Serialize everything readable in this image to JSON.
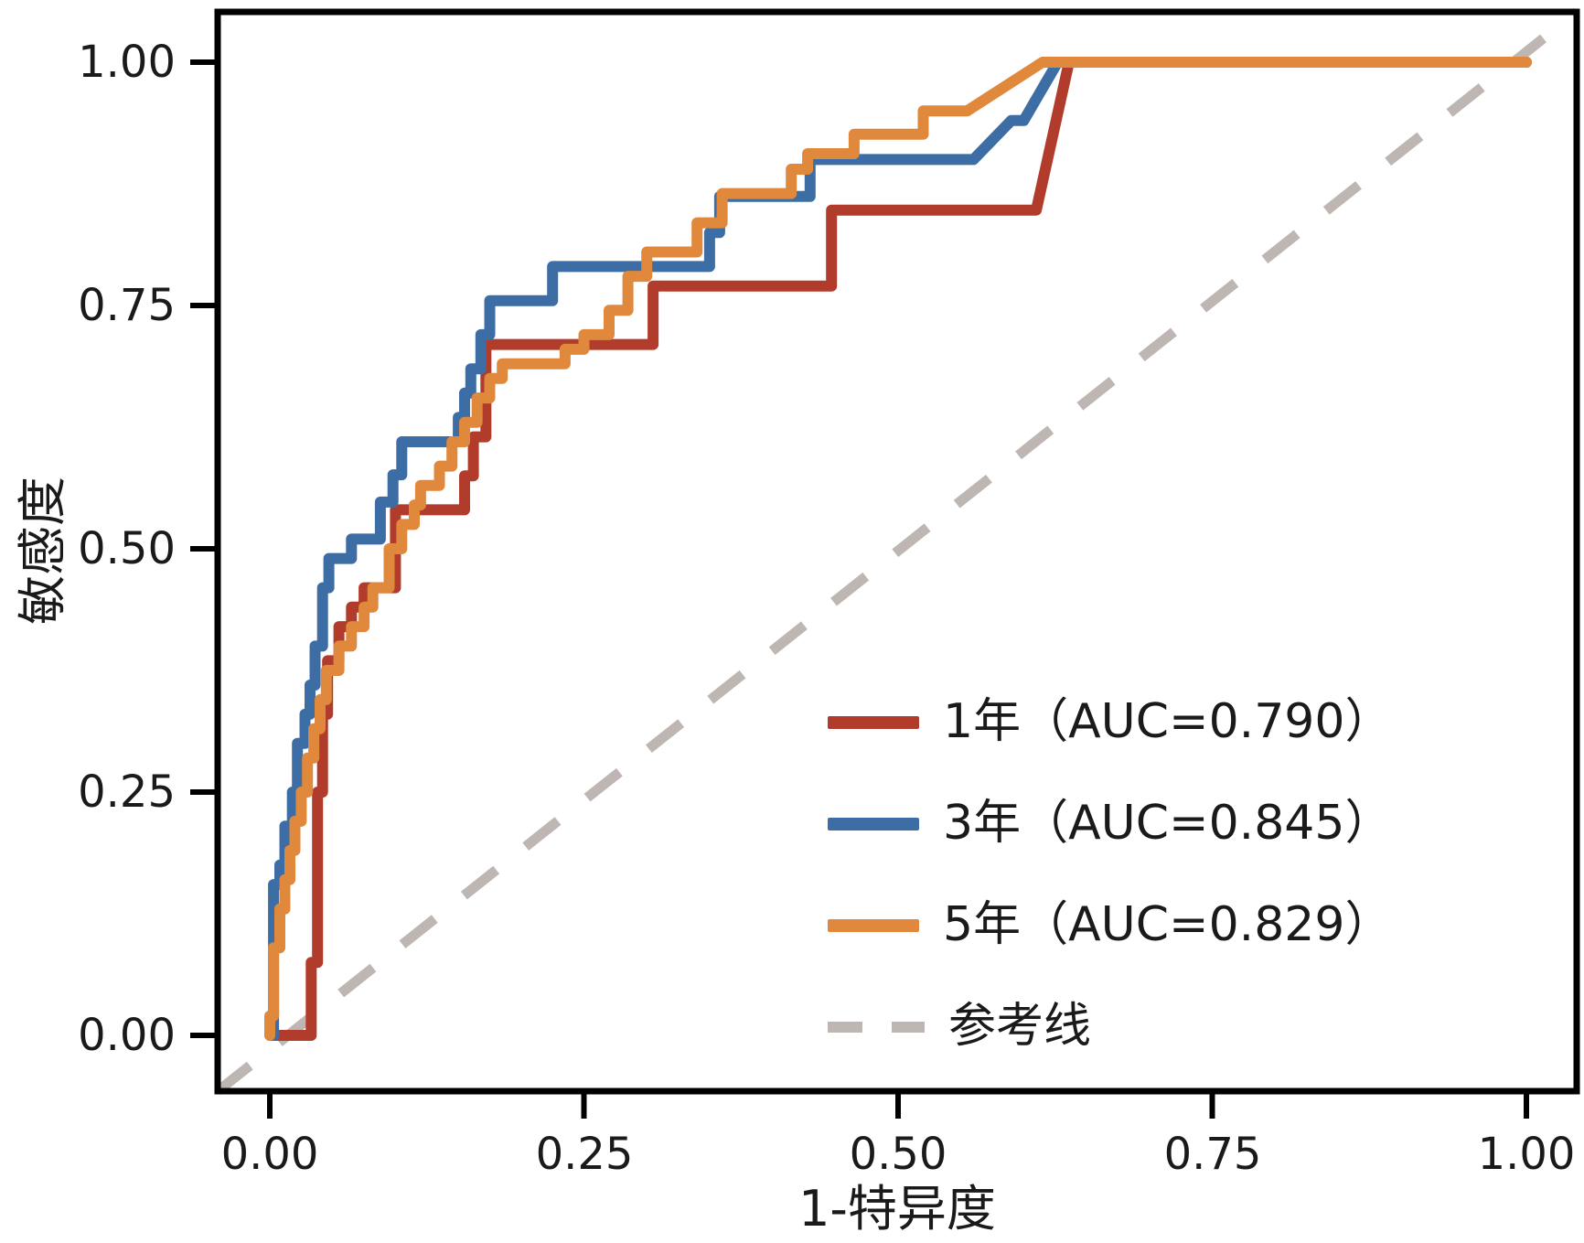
{
  "figure": {
    "background": "#ffffff",
    "text_color": "#1a1a1a",
    "axis_color": "#000000"
  },
  "chart_data": {
    "type": "line",
    "subtype": "roc-step-curves",
    "title": "",
    "xlabel": "1-特异度",
    "ylabel": "敏感度",
    "xlim": [
      0,
      1
    ],
    "ylim": [
      0,
      1
    ],
    "grid": false,
    "legend_position": "lower-right-inside",
    "x_ticks": {
      "values": [
        0,
        0.25,
        0.5,
        0.75,
        1.0
      ],
      "labels": [
        "0.00",
        "0.25",
        "0.50",
        "0.75",
        "1.00"
      ]
    },
    "y_ticks": {
      "values": [
        0,
        0.25,
        0.5,
        0.75,
        1.0
      ],
      "labels": [
        "0.00",
        "0.25",
        "0.50",
        "0.75",
        "1.00"
      ]
    },
    "series": [
      {
        "name": "1年",
        "auc": 0.79,
        "color": "#b23c2b",
        "points": [
          [
            0,
            0
          ],
          [
            0.033,
            0
          ],
          [
            0.033,
            0.075
          ],
          [
            0.038,
            0.075
          ],
          [
            0.038,
            0.25
          ],
          [
            0.042,
            0.25
          ],
          [
            0.042,
            0.33
          ],
          [
            0.046,
            0.33
          ],
          [
            0.046,
            0.385
          ],
          [
            0.055,
            0.385
          ],
          [
            0.055,
            0.42
          ],
          [
            0.065,
            0.42
          ],
          [
            0.065,
            0.44
          ],
          [
            0.075,
            0.44
          ],
          [
            0.075,
            0.46
          ],
          [
            0.1,
            0.46
          ],
          [
            0.1,
            0.54
          ],
          [
            0.155,
            0.54
          ],
          [
            0.155,
            0.575
          ],
          [
            0.162,
            0.575
          ],
          [
            0.162,
            0.615
          ],
          [
            0.172,
            0.615
          ],
          [
            0.172,
            0.71
          ],
          [
            0.305,
            0.71
          ],
          [
            0.305,
            0.77
          ],
          [
            0.447,
            0.77
          ],
          [
            0.447,
            0.848
          ],
          [
            0.61,
            0.848
          ],
          [
            0.636,
            1
          ],
          [
            1,
            1
          ]
        ]
      },
      {
        "name": "3年",
        "auc": 0.845,
        "color": "#3d6da5",
        "points": [
          [
            0.003,
            0
          ],
          [
            0.003,
            0.155
          ],
          [
            0.008,
            0.155
          ],
          [
            0.008,
            0.175
          ],
          [
            0.012,
            0.175
          ],
          [
            0.012,
            0.215
          ],
          [
            0.018,
            0.215
          ],
          [
            0.018,
            0.25
          ],
          [
            0.022,
            0.25
          ],
          [
            0.022,
            0.3
          ],
          [
            0.028,
            0.3
          ],
          [
            0.028,
            0.33
          ],
          [
            0.032,
            0.33
          ],
          [
            0.032,
            0.36
          ],
          [
            0.036,
            0.36
          ],
          [
            0.036,
            0.4
          ],
          [
            0.042,
            0.4
          ],
          [
            0.042,
            0.46
          ],
          [
            0.047,
            0.46
          ],
          [
            0.047,
            0.49
          ],
          [
            0.065,
            0.49
          ],
          [
            0.065,
            0.51
          ],
          [
            0.088,
            0.51
          ],
          [
            0.088,
            0.548
          ],
          [
            0.098,
            0.548
          ],
          [
            0.098,
            0.576
          ],
          [
            0.105,
            0.576
          ],
          [
            0.105,
            0.61
          ],
          [
            0.15,
            0.61
          ],
          [
            0.15,
            0.635
          ],
          [
            0.155,
            0.635
          ],
          [
            0.155,
            0.66
          ],
          [
            0.16,
            0.66
          ],
          [
            0.16,
            0.685
          ],
          [
            0.168,
            0.685
          ],
          [
            0.168,
            0.72
          ],
          [
            0.175,
            0.72
          ],
          [
            0.175,
            0.755
          ],
          [
            0.225,
            0.755
          ],
          [
            0.225,
            0.79
          ],
          [
            0.35,
            0.79
          ],
          [
            0.35,
            0.825
          ],
          [
            0.358,
            0.825
          ],
          [
            0.358,
            0.862
          ],
          [
            0.43,
            0.862
          ],
          [
            0.43,
            0.9
          ],
          [
            0.56,
            0.9
          ],
          [
            0.59,
            0.94
          ],
          [
            0.6,
            0.94
          ],
          [
            0.627,
            1
          ],
          [
            1,
            1
          ]
        ]
      },
      {
        "name": "5年",
        "auc": 0.829,
        "color": "#e0883c",
        "points": [
          [
            0,
            0
          ],
          [
            0,
            0.02
          ],
          [
            0.003,
            0.02
          ],
          [
            0.003,
            0.09
          ],
          [
            0.008,
            0.09
          ],
          [
            0.008,
            0.13
          ],
          [
            0.012,
            0.13
          ],
          [
            0.012,
            0.16
          ],
          [
            0.016,
            0.16
          ],
          [
            0.016,
            0.19
          ],
          [
            0.02,
            0.19
          ],
          [
            0.02,
            0.22
          ],
          [
            0.025,
            0.22
          ],
          [
            0.025,
            0.25
          ],
          [
            0.03,
            0.25
          ],
          [
            0.03,
            0.285
          ],
          [
            0.035,
            0.285
          ],
          [
            0.035,
            0.315
          ],
          [
            0.04,
            0.315
          ],
          [
            0.04,
            0.345
          ],
          [
            0.045,
            0.345
          ],
          [
            0.045,
            0.375
          ],
          [
            0.055,
            0.375
          ],
          [
            0.055,
            0.4
          ],
          [
            0.065,
            0.4
          ],
          [
            0.065,
            0.42
          ],
          [
            0.075,
            0.42
          ],
          [
            0.075,
            0.44
          ],
          [
            0.082,
            0.44
          ],
          [
            0.082,
            0.46
          ],
          [
            0.095,
            0.46
          ],
          [
            0.095,
            0.5
          ],
          [
            0.105,
            0.5
          ],
          [
            0.105,
            0.525
          ],
          [
            0.115,
            0.525
          ],
          [
            0.115,
            0.545
          ],
          [
            0.12,
            0.545
          ],
          [
            0.12,
            0.565
          ],
          [
            0.135,
            0.565
          ],
          [
            0.135,
            0.585
          ],
          [
            0.145,
            0.585
          ],
          [
            0.145,
            0.61
          ],
          [
            0.155,
            0.61
          ],
          [
            0.155,
            0.63
          ],
          [
            0.165,
            0.63
          ],
          [
            0.165,
            0.655
          ],
          [
            0.175,
            0.655
          ],
          [
            0.175,
            0.675
          ],
          [
            0.185,
            0.675
          ],
          [
            0.185,
            0.69
          ],
          [
            0.235,
            0.69
          ],
          [
            0.235,
            0.705
          ],
          [
            0.25,
            0.705
          ],
          [
            0.25,
            0.72
          ],
          [
            0.27,
            0.72
          ],
          [
            0.27,
            0.745
          ],
          [
            0.285,
            0.745
          ],
          [
            0.285,
            0.78
          ],
          [
            0.3,
            0.78
          ],
          [
            0.3,
            0.805
          ],
          [
            0.34,
            0.805
          ],
          [
            0.34,
            0.835
          ],
          [
            0.36,
            0.835
          ],
          [
            0.36,
            0.865
          ],
          [
            0.415,
            0.865
          ],
          [
            0.415,
            0.89
          ],
          [
            0.428,
            0.89
          ],
          [
            0.428,
            0.906
          ],
          [
            0.465,
            0.906
          ],
          [
            0.465,
            0.926
          ],
          [
            0.52,
            0.926
          ],
          [
            0.52,
            0.95
          ],
          [
            0.555,
            0.95
          ],
          [
            0.615,
            1
          ],
          [
            1,
            1
          ]
        ]
      }
    ],
    "reference_line": {
      "label": "参考线",
      "color": "#bdb6b2",
      "style": "dashed",
      "from_corner": [
        0,
        0
      ],
      "to_corner": [
        1,
        1
      ]
    }
  },
  "axes": {
    "x_title": "1-特异度",
    "y_title": "敏感度",
    "x_labels": [
      "0.00",
      "0.25",
      "0.50",
      "0.75",
      "1.00"
    ],
    "y_labels": [
      "0.00",
      "0.25",
      "0.50",
      "0.75",
      "1.00"
    ]
  },
  "legend": {
    "items": [
      {
        "label": "1年（AUC=0.790）",
        "color": "#b23c2b",
        "type": "solid"
      },
      {
        "label": "3年（AUC=0.845）",
        "color": "#3d6da5",
        "type": "solid"
      },
      {
        "label": "5年（AUC=0.829）",
        "color": "#e0883c",
        "type": "solid"
      },
      {
        "label": "参考线",
        "color": "#bdb6b2",
        "type": "dashed"
      }
    ]
  }
}
